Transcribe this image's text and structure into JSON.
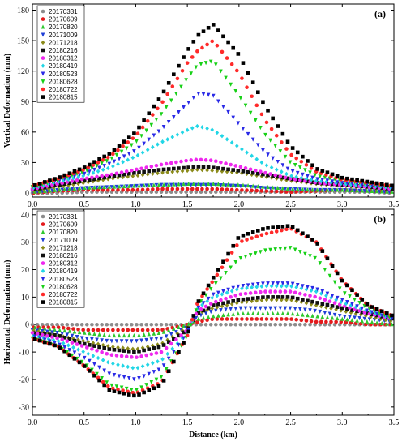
{
  "chart_data": [
    {
      "panel_label": "(a)",
      "type": "scatter",
      "ylabel": "Vertical Deformation (mm)",
      "xlabel": "",
      "xlim": [
        0,
        3.5
      ],
      "ylim": [
        -4,
        186
      ],
      "xticks": [
        "0.0",
        "0.5",
        "1.0",
        "1.5",
        "2.0",
        "2.5",
        "3.0",
        "3.5"
      ],
      "yticks": [
        0,
        30,
        60,
        90,
        120,
        150,
        180
      ],
      "legend_position": "top-left",
      "x": [
        0.0,
        0.25,
        0.5,
        0.75,
        1.0,
        1.25,
        1.5,
        1.6,
        1.75,
        2.0,
        2.25,
        2.5,
        2.75,
        3.0,
        3.25,
        3.5
      ],
      "series": [
        {
          "name": "20170331",
          "color": "#8c8c8c",
          "marker": "circle",
          "values": [
            0,
            0,
            1,
            1,
            1,
            1,
            1,
            1,
            1,
            1,
            1,
            1,
            1,
            1,
            1,
            0
          ]
        },
        {
          "name": "20170609",
          "color": "#e41a1c",
          "marker": "circle",
          "values": [
            0,
            2,
            3,
            3,
            3,
            4,
            4,
            4,
            4,
            3,
            2,
            1,
            2,
            3,
            2,
            1
          ]
        },
        {
          "name": "20170820",
          "color": "#2ec82e",
          "marker": "triangle",
          "values": [
            1,
            3,
            5,
            6,
            7,
            8,
            9,
            9,
            9,
            8,
            6,
            4,
            3,
            3,
            2,
            1
          ]
        },
        {
          "name": "20171009",
          "color": "#1f3fd6",
          "marker": "down",
          "values": [
            1,
            3,
            5,
            6,
            7,
            8,
            8,
            8,
            8,
            7,
            5,
            4,
            3,
            3,
            2,
            1
          ]
        },
        {
          "name": "20171218",
          "color": "#8b8b1a",
          "marker": "diamond",
          "values": [
            2,
            6,
            10,
            14,
            17,
            20,
            22,
            23,
            22,
            20,
            16,
            12,
            9,
            7,
            5,
            3
          ]
        },
        {
          "name": "20180216",
          "color": "#111111",
          "marker": "square",
          "values": [
            3,
            8,
            12,
            16,
            20,
            23,
            25,
            26,
            25,
            22,
            18,
            14,
            10,
            8,
            6,
            4
          ]
        },
        {
          "name": "20180312",
          "color": "#ee28ee",
          "marker": "circle",
          "values": [
            4,
            9,
            14,
            18,
            23,
            28,
            32,
            33,
            32,
            26,
            20,
            14,
            10,
            8,
            6,
            4
          ]
        },
        {
          "name": "20180419",
          "color": "#21d6e6",
          "marker": "diamond",
          "values": [
            5,
            11,
            17,
            25,
            36,
            50,
            62,
            66,
            62,
            45,
            28,
            17,
            12,
            9,
            7,
            5
          ]
        },
        {
          "name": "20180523",
          "color": "#2a2ae6",
          "marker": "down",
          "values": [
            6,
            12,
            19,
            29,
            42,
            63,
            88,
            98,
            96,
            68,
            40,
            22,
            14,
            10,
            8,
            6
          ]
        },
        {
          "name": "20180628",
          "color": "#17d017",
          "marker": "down",
          "values": [
            6,
            13,
            21,
            33,
            50,
            78,
            113,
            126,
            130,
            96,
            58,
            30,
            17,
            12,
            9,
            6
          ]
        },
        {
          "name": "20180722",
          "color": "#ff2a2a",
          "marker": "circle",
          "values": [
            7,
            14,
            23,
            36,
            56,
            88,
            128,
            140,
            150,
            118,
            72,
            38,
            21,
            13,
            10,
            7
          ]
        },
        {
          "name": "20180815",
          "color": "#000000",
          "marker": "square",
          "values": [
            7,
            15,
            25,
            39,
            60,
            96,
            140,
            155,
            166,
            136,
            86,
            46,
            24,
            15,
            11,
            7
          ]
        }
      ]
    },
    {
      "panel_label": "(b)",
      "type": "scatter",
      "ylabel": "Horizontal Deformation (mm)",
      "xlabel": "Distance (km)",
      "xlim": [
        0,
        3.5
      ],
      "ylim": [
        -33,
        42
      ],
      "xticks": [
        "0.0",
        "0.5",
        "1.0",
        "1.5",
        "2.0",
        "2.5",
        "3.0",
        "3.5"
      ],
      "yticks": [
        -30,
        -20,
        -10,
        0,
        10,
        20,
        30,
        40
      ],
      "legend_position": "top-left",
      "x": [
        0.0,
        0.25,
        0.5,
        0.75,
        1.0,
        1.25,
        1.5,
        1.6,
        1.75,
        2.0,
        2.25,
        2.5,
        2.75,
        3.0,
        3.25,
        3.5
      ],
      "series": [
        {
          "name": "20170331",
          "color": "#8c8c8c",
          "marker": "circle",
          "values": [
            0,
            0,
            0,
            0,
            0,
            0,
            0,
            0,
            0,
            0,
            0,
            0,
            0,
            0,
            0,
            0
          ]
        },
        {
          "name": "20170609",
          "color": "#e41a1c",
          "marker": "circle",
          "values": [
            -1,
            -1,
            -2,
            -2,
            -2,
            -2,
            0,
            1,
            2,
            2,
            2,
            2,
            1,
            1,
            0,
            0
          ]
        },
        {
          "name": "20170820",
          "color": "#2ec82e",
          "marker": "triangle",
          "values": [
            -1,
            -2,
            -3,
            -4,
            -4,
            -3,
            0,
            2,
            3,
            4,
            4,
            4,
            3,
            2,
            1,
            0
          ]
        },
        {
          "name": "20171009",
          "color": "#1f3fd6",
          "marker": "down",
          "values": [
            -2,
            -3,
            -5,
            -6,
            -6,
            -5,
            -1,
            3,
            5,
            6,
            6,
            6,
            5,
            3,
            2,
            1
          ]
        },
        {
          "name": "20171218",
          "color": "#8b8b1a",
          "marker": "diamond",
          "values": [
            -2,
            -4,
            -6,
            -8,
            -9,
            -7,
            -1,
            4,
            6,
            8,
            9,
            9,
            7,
            5,
            3,
            1
          ]
        },
        {
          "name": "20180216",
          "color": "#111111",
          "marker": "square",
          "values": [
            -3,
            -4,
            -7,
            -9,
            -10,
            -8,
            -2,
            4,
            7,
            9,
            10,
            10,
            8,
            6,
            4,
            2
          ]
        },
        {
          "name": "20180312",
          "color": "#ee28ee",
          "marker": "circle",
          "values": [
            -3,
            -5,
            -8,
            -11,
            -12,
            -10,
            -2,
            5,
            8,
            11,
            12,
            12,
            10,
            7,
            4,
            2
          ]
        },
        {
          "name": "20180419",
          "color": "#21d6e6",
          "marker": "diamond",
          "values": [
            -4,
            -6,
            -10,
            -14,
            -16,
            -13,
            -3,
            6,
            10,
            13,
            14,
            14,
            12,
            8,
            5,
            2
          ]
        },
        {
          "name": "20180523",
          "color": "#2a2ae6",
          "marker": "down",
          "values": [
            -4,
            -7,
            -12,
            -18,
            -20,
            -16,
            -3,
            6,
            11,
            14,
            15,
            15,
            13,
            9,
            5,
            2
          ]
        },
        {
          "name": "20180628",
          "color": "#17d017",
          "marker": "down",
          "values": [
            -5,
            -8,
            -14,
            -22,
            -24,
            -19,
            -4,
            7,
            14,
            24,
            27,
            28,
            24,
            12,
            6,
            2
          ]
        },
        {
          "name": "20180722",
          "color": "#ff2a2a",
          "marker": "circle",
          "values": [
            -5,
            -8,
            -15,
            -23,
            -25,
            -21,
            -4,
            8,
            16,
            30,
            33,
            35,
            30,
            16,
            7,
            3
          ]
        },
        {
          "name": "20180815",
          "color": "#000000",
          "marker": "square",
          "values": [
            -5,
            -8,
            -15,
            -24,
            -26,
            -22,
            -4,
            8,
            17,
            32,
            35,
            36,
            30,
            16,
            7,
            3
          ]
        }
      ]
    }
  ]
}
